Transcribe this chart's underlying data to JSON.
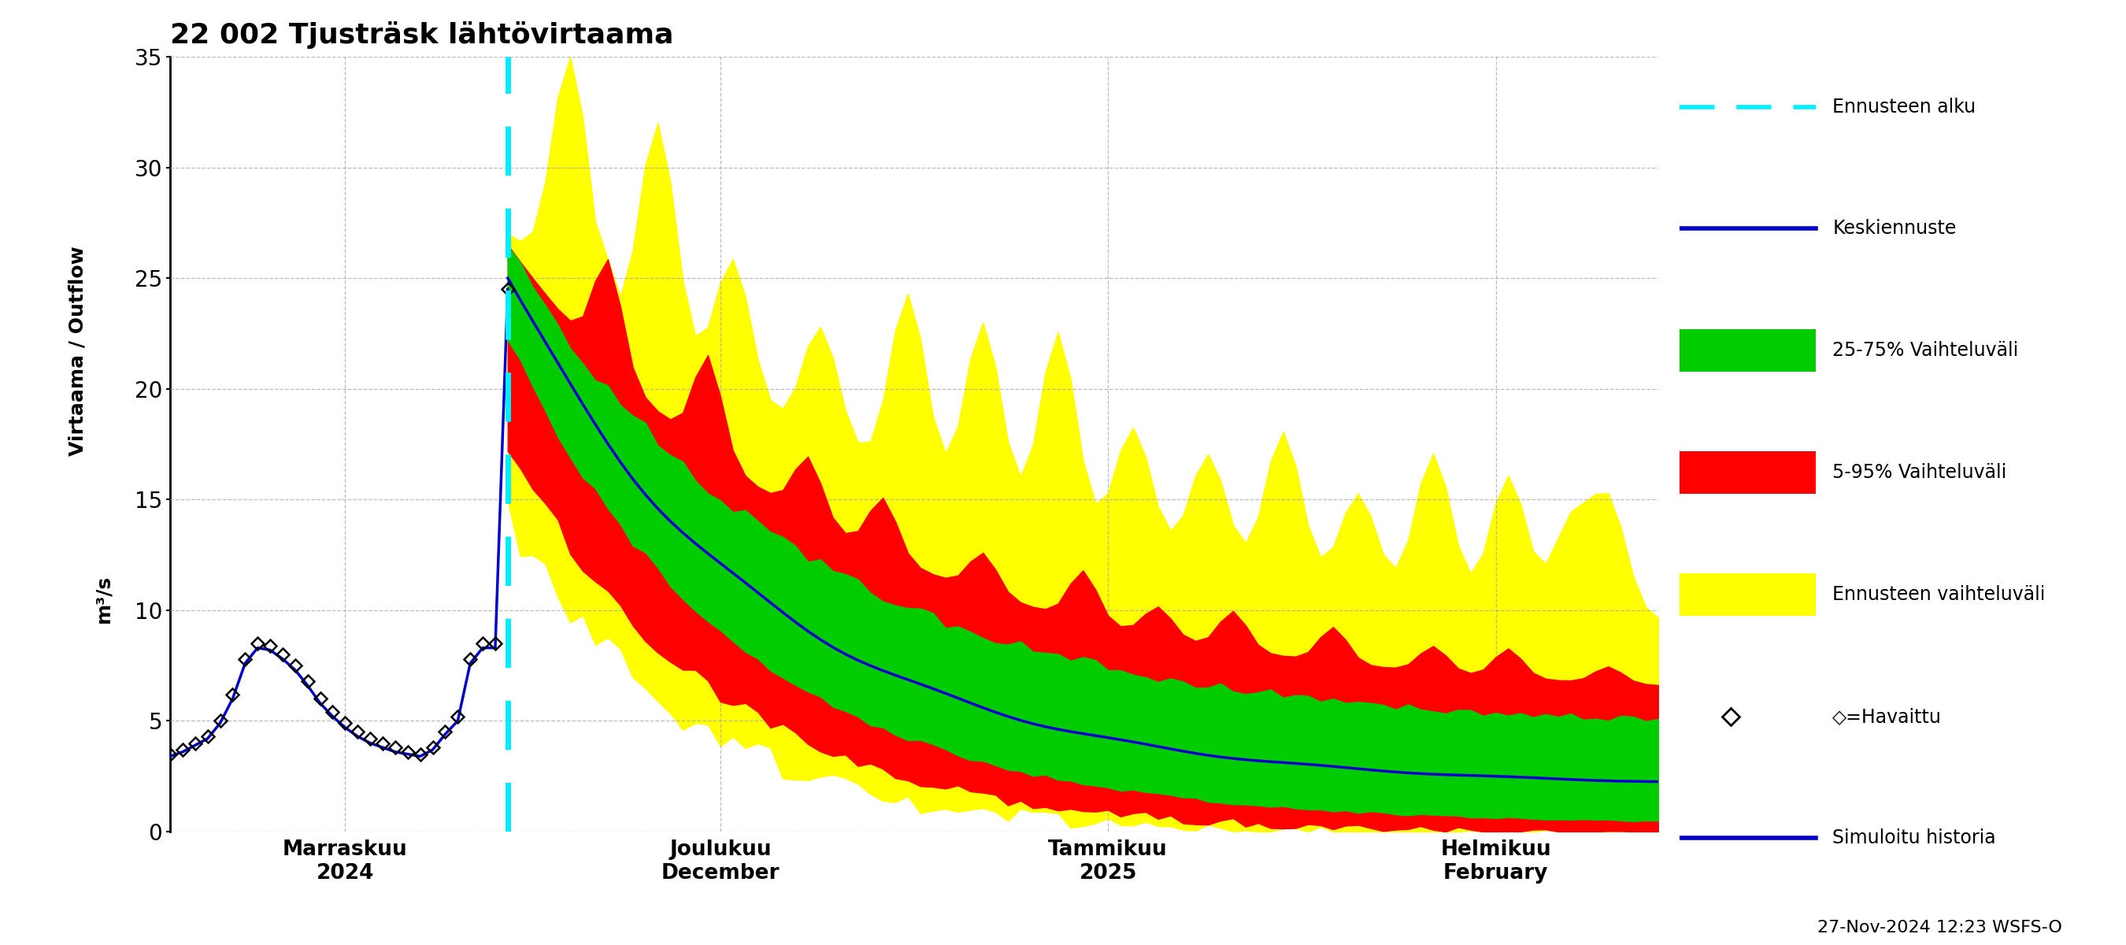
{
  "title": "22 002 Tjusträsk lähtövirtaama",
  "ylabel_top": "Virtaama / Outflow",
  "ylabel_bot": "m³/s",
  "ylim": [
    0,
    35
  ],
  "yticks": [
    0,
    5,
    10,
    15,
    20,
    25,
    30,
    35
  ],
  "background_color": "#ffffff",
  "grid_color": "#aaaaaa",
  "n_total": 120,
  "forecast_start": 27,
  "x_tick_positions": [
    14,
    44,
    75,
    106
  ],
  "x_tick_labels": [
    "Marraskuu\n2024",
    "Joulukuu\nDecember",
    "Tammikuu\n2025",
    "Helmikuu\nFebruary"
  ],
  "bottom_label": "27-Nov-2024 12:23 WSFS-O",
  "legend_labels": [
    "Ennusteen alku",
    "Keskiennuste",
    "25-75% Vaihteluväli",
    "5-95% Vaihteluväli",
    "Ennusteen vaihteluväli",
    "◇=Havaittu",
    "Simuloitu historia"
  ],
  "colors": {
    "cyan_dashed": "#00eeff",
    "blue_line": "#0000cc",
    "green_fill": "#00cc00",
    "red_fill": "#ff0000",
    "yellow_fill": "#ffff00",
    "observed": "#000000",
    "sim_history": "#0000cc"
  }
}
